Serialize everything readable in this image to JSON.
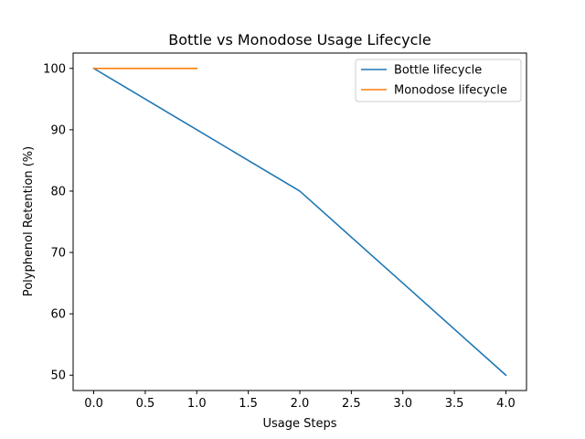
{
  "chart_data": {
    "type": "line",
    "title": "Bottle vs Monodose Usage Lifecycle",
    "xlabel": "Usage Steps",
    "ylabel": "Polyphenol Retention (%)",
    "xlim": [
      -0.2,
      4.2
    ],
    "ylim": [
      47.5,
      102.5
    ],
    "xticks": [
      0.0,
      0.5,
      1.0,
      1.5,
      2.0,
      2.5,
      3.0,
      3.5,
      4.0
    ],
    "xtick_labels": [
      "0.0",
      "0.5",
      "1.0",
      "1.5",
      "2.0",
      "2.5",
      "3.0",
      "3.5",
      "4.0"
    ],
    "yticks": [
      50,
      60,
      70,
      80,
      90,
      100
    ],
    "ytick_labels": [
      "50",
      "60",
      "70",
      "80",
      "90",
      "100"
    ],
    "grid": false,
    "legend_position": "top-right",
    "series": [
      {
        "name": "Bottle lifecycle",
        "color": "#1f77b4",
        "x": [
          0,
          1,
          2,
          3,
          4
        ],
        "y": [
          100,
          90,
          80,
          65,
          50
        ]
      },
      {
        "name": "Monodose lifecycle",
        "color": "#ff7f0e",
        "x": [
          0,
          1
        ],
        "y": [
          100,
          100
        ]
      }
    ]
  }
}
